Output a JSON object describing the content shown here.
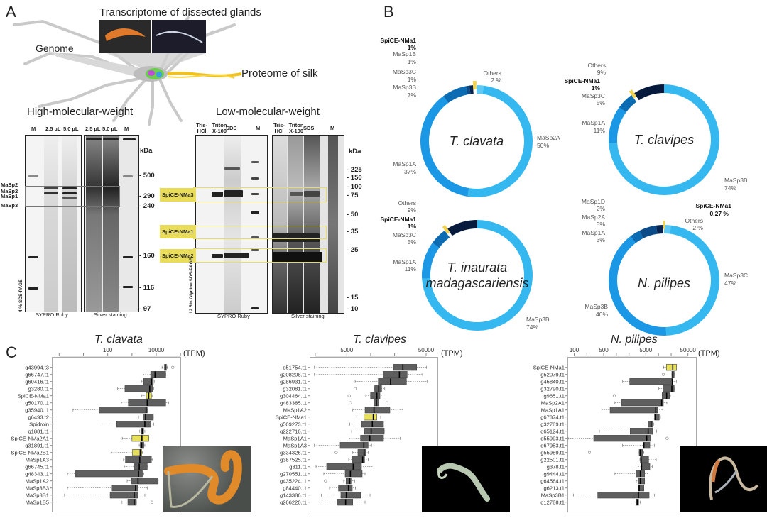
{
  "panels": {
    "a": "A",
    "b": "B",
    "c": "C"
  },
  "panel_a": {
    "transcriptome_label": "Transcriptome of dissected glands",
    "genome_label": "Genome",
    "proteome_label": "Proteome of silk",
    "hmw": {
      "title": "High-molecular-weight",
      "lanes": [
        "M",
        "2.5 µL",
        "5.0 µL",
        "2.5 µL",
        "5.0 µL",
        "M"
      ],
      "kda_unit": "kDa",
      "markers": [
        "- 500",
        "- 290",
        "- 240",
        "- 160",
        "- 116",
        "- 97"
      ],
      "band_labels": [
        "MaSp2",
        "MaSp2",
        "MaSp1",
        "MaSp3"
      ],
      "gel_type": "4 % SDS-PAGE",
      "stains": [
        "SYPRO Ruby",
        "Silver staining"
      ]
    },
    "lmw": {
      "title": "Low-molecular-weight",
      "lanes": [
        "Tris- HCl",
        "Triton X-100",
        "SDS",
        "M",
        "Tris- HCl",
        "Triton X-100",
        "SDS",
        "M"
      ],
      "kda_unit": "kDa",
      "markers": [
        "- 225",
        "- 150",
        "- 100",
        "- 75",
        "- 50",
        "- 35",
        "- 25",
        "- 15",
        "- 10"
      ],
      "highlight_labels": [
        "SpiCE-NMa3",
        "SpiCE-NMa1",
        "SpiCE-NMa2"
      ],
      "gel_type": "12.5% Glycine SDS-PAGE",
      "stains": [
        "SYPRO Ruby",
        "Silver staining"
      ]
    }
  },
  "chart_data": [
    {
      "type": "pie",
      "subtype": "donut",
      "title": "T. clavata",
      "slices": [
        {
          "label": "Others",
          "value": 2,
          "text": "2 %",
          "color": "#5ec9f5"
        },
        {
          "label": "MaSp2A",
          "value": 50,
          "text": "50%",
          "color": "#35b8f0"
        },
        {
          "label": "MaSp1A",
          "value": 37,
          "text": "37%",
          "color": "#1a98e6"
        },
        {
          "label": "MaSp3B",
          "value": 7,
          "text": "7%",
          "color": "#0b6cb3"
        },
        {
          "label": "MaSp3C",
          "value": 1,
          "text": "1%",
          "color": "#0a4b88"
        },
        {
          "label": "MaSp1B",
          "value": 1,
          "text": "1%",
          "color": "#06244d"
        },
        {
          "label": "SpiCE-NMa1",
          "value": 1,
          "text": "1%",
          "color": "#f3d24a",
          "exploded": true
        }
      ]
    },
    {
      "type": "pie",
      "subtype": "donut",
      "title": "T. clavipes",
      "slices": [
        {
          "label": "MaSp3B",
          "value": 74,
          "text": "74%",
          "color": "#35b8f0"
        },
        {
          "label": "MaSp1A",
          "value": 11,
          "text": "11%",
          "color": "#1a98e6"
        },
        {
          "label": "MaSp3C",
          "value": 5,
          "text": "5%",
          "color": "#0b6cb3"
        },
        {
          "label": "SpiCE-NMa1",
          "value": 1,
          "text": "1%",
          "color": "#f3d24a",
          "exploded": true
        },
        {
          "label": "Others",
          "value": 9,
          "text": "9%",
          "color": "#061a3d"
        }
      ]
    },
    {
      "type": "pie",
      "subtype": "donut",
      "title": "T. inaurata madagascariensis",
      "title_lines": [
        "T. inaurata",
        "madagascariensis"
      ],
      "slices": [
        {
          "label": "MaSp3B",
          "value": 74,
          "text": "74%",
          "color": "#35b8f0"
        },
        {
          "label": "MaSp1A",
          "value": 11,
          "text": "11%",
          "color": "#1a98e6"
        },
        {
          "label": "MaSp3C",
          "value": 5,
          "text": "5%",
          "color": "#0b6cb3"
        },
        {
          "label": "SpiCE-NMa1",
          "value": 1,
          "text": "1%",
          "color": "#f3d24a",
          "exploded": true
        },
        {
          "label": "Others",
          "value": 9,
          "text": "9%",
          "color": "#061a3d"
        }
      ]
    },
    {
      "type": "pie",
      "subtype": "donut",
      "title": "N. pilipes",
      "slices": [
        {
          "label": "Others",
          "value": 2,
          "text": "2 %",
          "color": "#5ec9f5"
        },
        {
          "label": "MaSp3C",
          "value": 47,
          "text": "47%",
          "color": "#35b8f0"
        },
        {
          "label": "MaSp3B",
          "value": 40,
          "text": "40%",
          "color": "#1a98e6"
        },
        {
          "label": "MaSp1A",
          "value": 3,
          "text": "3%",
          "color": "#0b6cb3"
        },
        {
          "label": "MaSp2A",
          "value": 5,
          "text": "5%",
          "color": "#0a4b88"
        },
        {
          "label": "MaSp1D",
          "value": 2,
          "text": "2%",
          "color": "#06244d"
        },
        {
          "label": "SpiCE-NMa1",
          "value": 0.27,
          "text": "0.27 %",
          "color": "#f3d24a",
          "exploded": true
        }
      ]
    },
    {
      "type": "boxplot",
      "title": "T. clavata",
      "xlabel": "(TPM)",
      "xscale": "log",
      "xlim_log10": [
        -0.2,
        5.1
      ],
      "ticks": [
        1,
        10,
        100,
        1000,
        10000,
        100000
      ],
      "tick_labels": [
        {
          "v": 100,
          "t": "100"
        },
        {
          "v": 10000,
          "t": "10000"
        }
      ],
      "value_format": "log10 TPM [whisker_low, q1, median, q3, whisker_high]",
      "rows": [
        {
          "label": "g43994.t3",
          "v": [
            4.24,
            4.34,
            4.37,
            4.42,
            4.45
          ],
          "out": [
            4.68
          ]
        },
        {
          "label": "g66747.t1",
          "v": [
            3.46,
            3.77,
            3.95,
            4.39,
            4.39
          ]
        },
        {
          "label": "g60416.t1",
          "v": [
            3.39,
            3.48,
            3.8,
            3.88,
            3.92
          ]
        },
        {
          "label": "g3280.t1",
          "v": [
            2.41,
            2.71,
            3.73,
            3.85,
            3.9
          ]
        },
        {
          "label": "SpiCE-NMa1",
          "v": [
            3.39,
            3.59,
            3.69,
            3.8,
            3.83
          ],
          "hl": true
        },
        {
          "label": "g50170.t1",
          "v": [
            2.56,
            2.85,
            3.63,
            4.39,
            4.51
          ]
        },
        {
          "label": "g35940.t1",
          "v": [
            0.57,
            1.64,
            3.58,
            3.63,
            3.65
          ]
        },
        {
          "label": "g6493.t2",
          "v": [
            3.27,
            3.46,
            3.56,
            3.88,
            3.88
          ]
        },
        {
          "label": "Spidroin",
          "v": [
            1.76,
            2.37,
            3.53,
            3.78,
            3.9
          ]
        },
        {
          "label": "g1881.t1",
          "v": [
            3.32,
            3.38,
            3.43,
            3.48,
            3.53
          ]
        },
        {
          "label": "SpiCE-NMa2A1",
          "v": [
            2.6,
            3.0,
            3.41,
            3.69,
            3.69
          ],
          "hl": true
        },
        {
          "label": "g31891.t1",
          "v": [
            3.3,
            3.34,
            3.4,
            3.49,
            3.53
          ]
        },
        {
          "label": "SpiCE-NMa2B1",
          "v": [
            2.15,
            3.02,
            3.34,
            3.4,
            3.43
          ],
          "hl": true
        },
        {
          "label": "MaSp1A3",
          "v": [
            2.65,
            2.73,
            3.32,
            3.8,
            3.85
          ]
        },
        {
          "label": "g66745.t1",
          "v": [
            2.68,
            3.09,
            3.3,
            3.63,
            3.63
          ]
        },
        {
          "label": "g48343.t1",
          "v": [
            0.34,
            0.66,
            3.27,
            3.43,
            3.49
          ]
        },
        {
          "label": "MaSp1A2",
          "v": [
            2.8,
            2.98,
            3.25,
            4.08,
            4.08
          ]
        },
        {
          "label": "MaSp3B3",
          "v": [
            0.34,
            2.18,
            3.15,
            3.24,
            3.63
          ]
        },
        {
          "label": "MaSp3B1",
          "v": [
            0.22,
            2.1,
            3.09,
            3.24,
            3.53
          ]
        },
        {
          "label": "MaSp1B5",
          "v": [
            2.59,
            2.83,
            3.09,
            3.18,
            3.18
          ],
          "out": [
            3.82
          ]
        }
      ]
    },
    {
      "type": "boxplot",
      "title": "T. clavipes",
      "xlabel": "(TPM)",
      "xscale": "log",
      "ticks": [
        2000,
        5000,
        10000,
        20000,
        50000
      ],
      "tick_labels": [
        {
          "v": 5000,
          "t": "5000"
        },
        {
          "v": 50000,
          "t": "50000"
        }
      ],
      "value_format": "log10 TPM [whisker_low, q1, median, q3, whisker_high]",
      "rows": [
        {
          "label": "g51754.t1",
          "v": [
            3.29,
            4.287,
            4.406,
            4.58,
            4.705
          ]
        },
        {
          "label": "g208208.t1",
          "v": [
            3.29,
            4.156,
            4.362,
            4.46,
            4.654
          ]
        },
        {
          "label": "g286931.t1",
          "v": [
            3.804,
            4.096,
            4.251,
            4.451,
            4.714
          ]
        },
        {
          "label": "g32081.t1",
          "v": [
            4.05,
            4.05,
            4.102,
            4.138,
            4.177
          ],
          "out": [
            3.804
          ]
        },
        {
          "label": "g304464.t1",
          "v": [
            3.938,
            3.998,
            4.078,
            4.117,
            4.156
          ],
          "out": [
            3.729
          ]
        },
        {
          "label": "g483385.t1",
          "v": [
            4.042,
            4.042,
            4.072,
            4.102,
            4.102
          ],
          "out": [
            3.744,
            4.206
          ]
        },
        {
          "label": "MaSp1A2",
          "v": [
            3.774,
            3.929,
            4.042,
            4.242,
            4.406
          ]
        },
        {
          "label": "SpiCE-NMa1",
          "v": [
            3.827,
            3.917,
            4.033,
            4.078,
            4.126
          ],
          "hl": true
        },
        {
          "label": "g509273.t1",
          "v": [
            3.738,
            3.884,
            4.021,
            4.162,
            4.192
          ]
        },
        {
          "label": "g222716.t1",
          "v": [
            3.759,
            3.923,
            4.006,
            4.171,
            4.171
          ]
        },
        {
          "label": "MaSp1A1",
          "v": [
            3.729,
            3.872,
            3.989,
            4.162,
            4.371
          ]
        },
        {
          "label": "MaSp1A3",
          "v": [
            3.29,
            3.615,
            3.914,
            3.968,
            4.012
          ]
        },
        {
          "label": "g334326.t1",
          "v": [
            3.774,
            3.839,
            3.917,
            3.938,
            3.968
          ],
          "out": [
            3.565
          ]
        },
        {
          "label": "g387525.t1",
          "v": [
            3.723,
            3.768,
            3.899,
            3.923,
            3.968
          ]
        },
        {
          "label": "g311.t1",
          "v": [
            3.311,
            3.445,
            3.78,
            3.884,
            4.042
          ]
        },
        {
          "label": "g270551.t1",
          "v": [
            3.409,
            3.678,
            3.744,
            3.893,
            3.929
          ]
        },
        {
          "label": "g435224.t1",
          "v": [
            3.66,
            3.69,
            3.735,
            3.753,
            3.798
          ],
          "out": [
            3.43
          ]
        },
        {
          "label": "g84440.t1",
          "v": [
            3.481,
            3.594,
            3.72,
            3.768,
            3.809
          ]
        },
        {
          "label": "g143386.t1",
          "v": [
            3.377,
            3.624,
            3.693,
            3.872,
            3.992
          ]
        },
        {
          "label": "g266220.t1",
          "v": [
            3.386,
            3.583,
            3.684,
            3.774,
            3.929
          ]
        }
      ]
    },
    {
      "type": "boxplot",
      "title": "N. pilipes",
      "xlabel": "(TPM)",
      "xscale": "log",
      "ticks": [
        100,
        200,
        500,
        1000,
        2000,
        5000,
        10000,
        20000,
        50000
      ],
      "tick_labels": [
        {
          "v": 100,
          "t": "100"
        },
        {
          "v": 500,
          "t": "500"
        },
        {
          "v": 5000,
          "t": "5000"
        },
        {
          "v": 50000,
          "t": "50000"
        }
      ],
      "value_format": "log10 TPM [whisker_low, q1, median, q3, whisker_high]",
      "rows": [
        {
          "label": "SpiCE-NMa1",
          "v": [
            4.12,
            4.188,
            4.339,
            4.429,
            4.429
          ],
          "hl": true
        },
        {
          "label": "g52079.t1",
          "v": [
            4.317,
            4.317,
            4.339,
            4.373,
            4.373
          ],
          "out": [
            4.115
          ]
        },
        {
          "label": "g45840.t1",
          "v": [
            3.148,
            3.317,
            4.328,
            4.328,
            4.424
          ]
        },
        {
          "label": "g32790.t1",
          "v": [
            4.008,
            4.103,
            4.317,
            4.373,
            4.373
          ]
        },
        {
          "label": "g9651.t1",
          "v": [
            4.087,
            4.087,
            4.193,
            4.261,
            4.283
          ],
          "out": [
            2.952
          ]
        },
        {
          "label": "MaSp2A1",
          "v": [
            2.965,
            3.121,
            4.075,
            4.115,
            4.199
          ]
        },
        {
          "label": "MaSp1A1",
          "v": [
            2.654,
            2.851,
            3.935,
            3.974,
            4.103
          ]
        },
        {
          "label": "g67374.t1",
          "v": [
            3.868,
            3.907,
            3.918,
            4.019,
            4.047
          ]
        },
        {
          "label": "g32789.t1",
          "v": [
            3.637,
            3.755,
            3.823,
            3.868,
            3.89
          ]
        },
        {
          "label": "g65124.t1",
          "v": [
            2.598,
            3.328,
            3.755,
            3.862,
            3.952
          ]
        },
        {
          "label": "g55993.t1",
          "v": [
            1.856,
            2.463,
            3.721,
            3.811,
            3.811
          ],
          "out": [
            4.205
          ]
        },
        {
          "label": "g67953.t1",
          "v": [
            3.148,
            3.637,
            3.654,
            3.795,
            3.907
          ]
        },
        {
          "label": "g55989.t1",
          "v": [
            3.542,
            3.542,
            3.57,
            3.626,
            3.654
          ],
          "out": [
            2.362
          ]
        },
        {
          "label": "g22501.t1",
          "v": [
            3.559,
            3.57,
            3.587,
            3.766,
            3.946
          ]
        },
        {
          "label": "g378.t1",
          "v": [
            3.514,
            3.581,
            3.598,
            3.795,
            3.851
          ]
        },
        {
          "label": "g9444.t1",
          "v": [
            2.965,
            3.469,
            3.57,
            3.671,
            3.749
          ]
        },
        {
          "label": "g64564.t1",
          "v": [
            3.474,
            3.525,
            3.57,
            3.671,
            3.671
          ]
        },
        {
          "label": "g6213.t1",
          "v": [
            3.525,
            3.525,
            3.542,
            3.654,
            3.654
          ]
        },
        {
          "label": "MaSp3B1",
          "v": [
            1.98,
            2.558,
            3.525,
            3.778,
            3.907
          ]
        },
        {
          "label": "g12788.t1",
          "v": [
            3.401,
            3.469,
            3.497,
            3.53,
            3.57
          ]
        }
      ]
    }
  ],
  "colors": {
    "box": "#5f5f5f",
    "highlight": "#e8e05a",
    "silk": "#f2c21b"
  }
}
